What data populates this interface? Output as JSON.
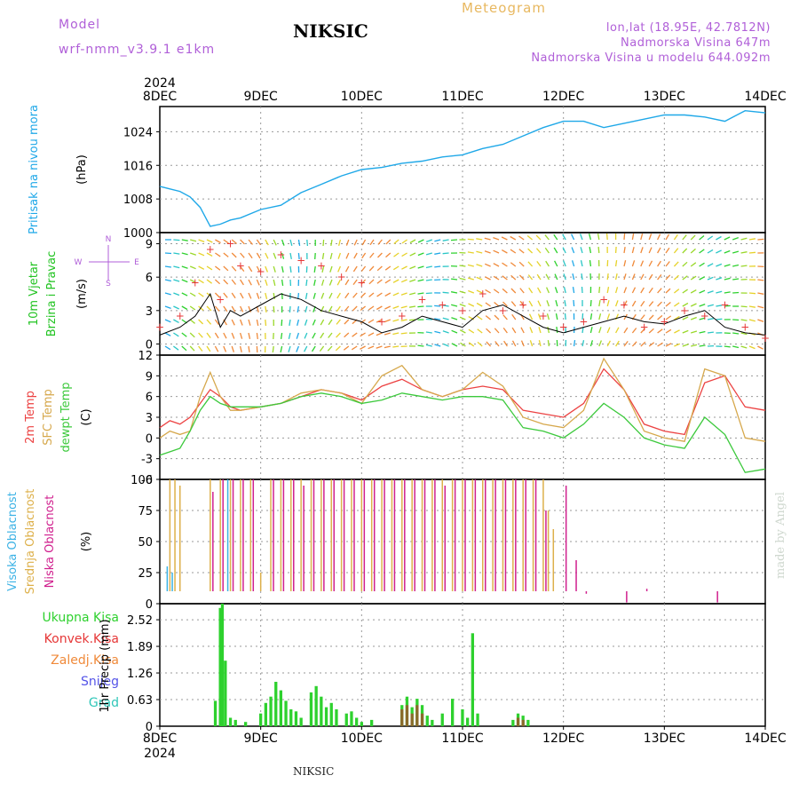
{
  "header": {
    "model_label": "Model",
    "model_name": "wrf-nmm_v3.9.1 e1km",
    "station": "NIKSIC",
    "title": "Meteogram",
    "lonlat": "lon,lat (18.95E, 42.7812N)",
    "altitude": "Nadmorska Visina 647m",
    "model_altitude": "Nadmorska Visina u modelu 644.092m"
  },
  "footer": {
    "station": "NIKSIC",
    "credit": "made by Angel"
  },
  "colors": {
    "pressure": "#1fa8e8",
    "wind_label": "#21c321",
    "t2m": "#ec4242",
    "tsfc": "#d6a84c",
    "dewpt": "#3cc93c",
    "cloud_high": "#3bb2e5",
    "cloud_mid": "#ddb04a",
    "cloud_low": "#d0208e",
    "precip_total": "#2ed12e",
    "precip_conv": "#e63737",
    "precip_frz": "#f08a3a",
    "snow": "#5454e8",
    "grad": "#2fc6b8",
    "axis_text": "#000000",
    "compass": "#b05fd8"
  },
  "chart_data": [
    {
      "type": "line",
      "panel": "pressure",
      "ylabel_lines": [
        "Pritisak na nivou mora",
        "(hPa)"
      ],
      "top_ticks": [
        "8DEC",
        "9DEC",
        "10DEC",
        "11DEC",
        "12DEC",
        "13DEC",
        "14DEC"
      ],
      "top_year": "2024",
      "x_days": [
        0,
        6
      ],
      "ylim": [
        1000,
        1030
      ],
      "yticks": [
        1000,
        1008,
        1016,
        1024
      ],
      "x": [
        0,
        0.1,
        0.2,
        0.3,
        0.4,
        0.5,
        0.6,
        0.7,
        0.8,
        1.0,
        1.2,
        1.4,
        1.6,
        1.8,
        2.0,
        2.2,
        2.4,
        2.6,
        2.8,
        3.0,
        3.2,
        3.4,
        3.6,
        3.8,
        4.0,
        4.2,
        4.4,
        4.6,
        4.8,
        5.0,
        5.2,
        5.4,
        5.6,
        5.8,
        6.0
      ],
      "y": [
        1011,
        1010.4,
        1009.8,
        1008.5,
        1006,
        1001.5,
        1002,
        1003,
        1003.5,
        1005.5,
        1006.5,
        1009.5,
        1011.5,
        1013.5,
        1015,
        1015.5,
        1016.5,
        1017,
        1018,
        1018.5,
        1020,
        1021,
        1023,
        1025,
        1026.5,
        1026.5,
        1025,
        1026,
        1027,
        1028,
        1028,
        1027.5,
        1026.5,
        1029,
        1028.5
      ]
    },
    {
      "type": "scatter",
      "panel": "wind",
      "ylabel_lines": [
        "10m Vjetar",
        "Brzina i Pravac",
        "(m/s)"
      ],
      "compass": [
        "N",
        "E",
        "S",
        "W"
      ],
      "ylim": [
        -1,
        10
      ],
      "yticks": [
        0,
        3,
        6,
        9
      ],
      "x": [
        0.0,
        0.2,
        0.35,
        0.5,
        0.6,
        0.7,
        0.8,
        1.0,
        1.2,
        1.4,
        1.6,
        1.8,
        2.0,
        2.2,
        2.4,
        2.6,
        2.8,
        3.0,
        3.2,
        3.4,
        3.6,
        3.8,
        4.0,
        4.2,
        4.4,
        4.6,
        4.8,
        5.0,
        5.2,
        5.4,
        5.6,
        5.8,
        6.0
      ],
      "speed": [
        0.8,
        1.5,
        2.5,
        4.5,
        1.5,
        3.0,
        2.5,
        3.5,
        4.5,
        4.0,
        3.0,
        2.5,
        2.0,
        1.0,
        1.5,
        2.5,
        2.0,
        1.5,
        3.0,
        3.5,
        2.5,
        1.5,
        1.0,
        1.5,
        2.0,
        2.5,
        2.0,
        1.8,
        2.5,
        3.0,
        1.5,
        1.0,
        0.8
      ],
      "gust": [
        1.5,
        2.5,
        5.5,
        8.5,
        4.0,
        9.0,
        7.0,
        6.5,
        8.0,
        7.5,
        7.0,
        6.0,
        5.5,
        2.0,
        2.5,
        4.0,
        3.5,
        3.0,
        4.5,
        3.0,
        3.5,
        2.5,
        1.5,
        2.0,
        4.0,
        3.5,
        1.5,
        2.0,
        3.0,
        2.5,
        3.5,
        1.5,
        0.5
      ]
    },
    {
      "type": "line",
      "panel": "temperature",
      "ylabel_lines": [
        "2m Temp",
        "SFC Temp",
        "dewpt Temp",
        "(C)"
      ],
      "ylim": [
        -6,
        12
      ],
      "yticks": [
        -6,
        -3,
        0,
        3,
        6,
        9,
        12
      ],
      "x": [
        0,
        0.1,
        0.2,
        0.3,
        0.4,
        0.5,
        0.6,
        0.7,
        0.8,
        1.0,
        1.2,
        1.4,
        1.6,
        1.8,
        2.0,
        2.2,
        2.4,
        2.6,
        2.8,
        3.0,
        3.2,
        3.4,
        3.6,
        3.8,
        4.0,
        4.2,
        4.4,
        4.6,
        4.8,
        5.0,
        5.2,
        5.4,
        5.6,
        5.8,
        6.0
      ],
      "series": [
        {
          "name": "2m Temp",
          "color_key": "t2m",
          "values": [
            1.5,
            2.5,
            2.0,
            3.0,
            5.0,
            7.0,
            6.0,
            4.5,
            4.0,
            4.5,
            5.0,
            6.0,
            7.0,
            6.5,
            5.5,
            7.5,
            8.5,
            7.0,
            6.0,
            7.0,
            7.5,
            7.0,
            4.0,
            3.5,
            3.0,
            5.0,
            10.0,
            7.0,
            2.0,
            1.0,
            0.5,
            8.0,
            9.0,
            4.5,
            4.0
          ]
        },
        {
          "name": "SFC Temp",
          "color_key": "tsfc",
          "values": [
            0.0,
            1.0,
            0.5,
            1.0,
            6.0,
            9.5,
            6.0,
            4.0,
            4.0,
            4.5,
            5.0,
            6.5,
            7.0,
            6.5,
            5.0,
            9.0,
            10.5,
            7.0,
            6.0,
            7.0,
            9.5,
            7.5,
            3.0,
            2.0,
            1.5,
            4.0,
            11.5,
            7.0,
            1.0,
            0.0,
            -0.5,
            10.0,
            9.0,
            0.0,
            -0.5
          ]
        },
        {
          "name": "dewpt Temp",
          "color_key": "dewpt",
          "values": [
            -2.5,
            -2.0,
            -1.5,
            1.0,
            4.0,
            6.0,
            5.0,
            4.5,
            4.5,
            4.5,
            5.0,
            6.0,
            6.5,
            6.0,
            5.0,
            5.5,
            6.5,
            6.0,
            5.5,
            6.0,
            6.0,
            5.5,
            1.5,
            1.0,
            0.0,
            2.0,
            5.0,
            3.0,
            0.0,
            -1.0,
            -1.5,
            3.0,
            0.5,
            -5.0,
            -4.5
          ]
        }
      ]
    },
    {
      "type": "bar",
      "panel": "clouds",
      "ylabel_lines": [
        "Visoka Oblacnost",
        "Srednja Oblacnost",
        "Niska Oblacnost",
        "(%)"
      ],
      "ylim": [
        0,
        100
      ],
      "yticks": [
        0,
        25,
        50,
        75,
        100
      ],
      "x": [
        0.1,
        0.15,
        0.2,
        0.5,
        0.6,
        0.7,
        0.8,
        0.9,
        1.0,
        1.1,
        1.2,
        1.3,
        1.4,
        1.5,
        1.6,
        1.7,
        1.8,
        1.9,
        2.0,
        2.1,
        2.2,
        2.3,
        2.4,
        2.5,
        2.6,
        2.7,
        2.8,
        2.9,
        3.0,
        3.1,
        3.2,
        3.3,
        3.4,
        3.5,
        3.6,
        3.7,
        3.8,
        3.85,
        3.9,
        4.0,
        4.1,
        4.2,
        4.6,
        4.8,
        5.5
      ],
      "series": [
        {
          "name": "Visoka Oblacnost",
          "color_key": "cloud_high",
          "values": [
            30,
            25,
            0,
            0,
            0,
            100,
            0,
            0,
            0,
            0,
            0,
            0,
            0,
            0,
            0,
            0,
            0,
            0,
            0,
            0,
            0,
            0,
            0,
            0,
            0,
            0,
            0,
            0,
            0,
            0,
            0,
            0,
            0,
            0,
            0,
            0,
            0,
            0,
            0,
            0,
            0,
            0,
            0,
            0,
            0
          ]
        },
        {
          "name": "Srednja Oblacnost",
          "color_key": "cloud_mid",
          "values": [
            100,
            100,
            95,
            100,
            100,
            100,
            100,
            100,
            25,
            100,
            100,
            100,
            100,
            100,
            100,
            100,
            100,
            100,
            100,
            100,
            100,
            100,
            100,
            100,
            100,
            100,
            100,
            100,
            100,
            100,
            100,
            100,
            100,
            100,
            100,
            100,
            100,
            75,
            60,
            0,
            0,
            0,
            0,
            0,
            0
          ]
        },
        {
          "name": "Niska Oblacnost",
          "color_key": "cloud_low",
          "values": [
            0,
            0,
            0,
            90,
            100,
            100,
            100,
            100,
            0,
            100,
            100,
            100,
            95,
            100,
            100,
            100,
            100,
            100,
            100,
            100,
            100,
            100,
            100,
            100,
            100,
            100,
            95,
            100,
            100,
            100,
            100,
            100,
            100,
            100,
            100,
            100,
            75,
            0,
            0,
            95,
            35,
            8,
            1,
            12,
            1
          ]
        }
      ]
    },
    {
      "type": "bar",
      "panel": "precipitation",
      "ylabel_lines": [
        "1hr Precip (mm)"
      ],
      "legend_labels": [
        "Ukupna Kisa",
        "Konvek.Kisa",
        "Zaledj.Kisa",
        "Snijeg",
        "Grad"
      ],
      "bottom_ticks": [
        "8DEC",
        "9DEC",
        "10DEC",
        "11DEC",
        "12DEC",
        "13DEC",
        "14DEC"
      ],
      "bottom_year": "2024",
      "ylim": [
        0,
        2.9
      ],
      "yticks": [
        0,
        0.63,
        1.26,
        1.89,
        2.52
      ],
      "ytick_labels": [
        "0",
        "0.63",
        "1.26",
        "1.89",
        "2.52"
      ],
      "x": [
        0.55,
        0.6,
        0.62,
        0.65,
        0.7,
        0.75,
        0.85,
        1.0,
        1.05,
        1.1,
        1.15,
        1.2,
        1.25,
        1.3,
        1.35,
        1.4,
        1.5,
        1.55,
        1.6,
        1.65,
        1.7,
        1.75,
        1.85,
        1.9,
        1.95,
        2.0,
        2.1,
        2.4,
        2.45,
        2.5,
        2.55,
        2.6,
        2.65,
        2.7,
        2.8,
        2.9,
        3.0,
        3.05,
        3.1,
        3.15,
        3.5,
        3.55,
        3.6,
        3.65
      ],
      "series": [
        {
          "name": "Ukupna Kisa",
          "color_key": "precip_total",
          "values": [
            0.6,
            2.8,
            2.9,
            1.55,
            0.2,
            0.15,
            0.1,
            0.3,
            0.55,
            0.7,
            1.05,
            0.85,
            0.6,
            0.4,
            0.35,
            0.2,
            0.8,
            0.95,
            0.7,
            0.45,
            0.55,
            0.4,
            0.3,
            0.35,
            0.2,
            0.1,
            0.15,
            0.5,
            0.7,
            0.45,
            0.65,
            0.5,
            0.25,
            0.15,
            0.3,
            0.65,
            0.4,
            0.2,
            2.2,
            0.3,
            0.15,
            0.3,
            0.25,
            0.15
          ]
        },
        {
          "name": "Konvek.Kisa",
          "color_key": "precip_conv",
          "values": [
            0,
            0,
            0,
            0,
            0,
            0,
            0,
            0,
            0,
            0,
            0,
            0,
            0,
            0,
            0,
            0,
            0,
            0,
            0,
            0,
            0,
            0,
            0,
            0,
            0,
            0,
            0,
            0.4,
            0.5,
            0.3,
            0.5,
            0.3,
            0,
            0,
            0,
            0,
            0,
            0,
            0,
            0,
            0,
            0.2,
            0.15,
            0
          ]
        }
      ]
    }
  ]
}
